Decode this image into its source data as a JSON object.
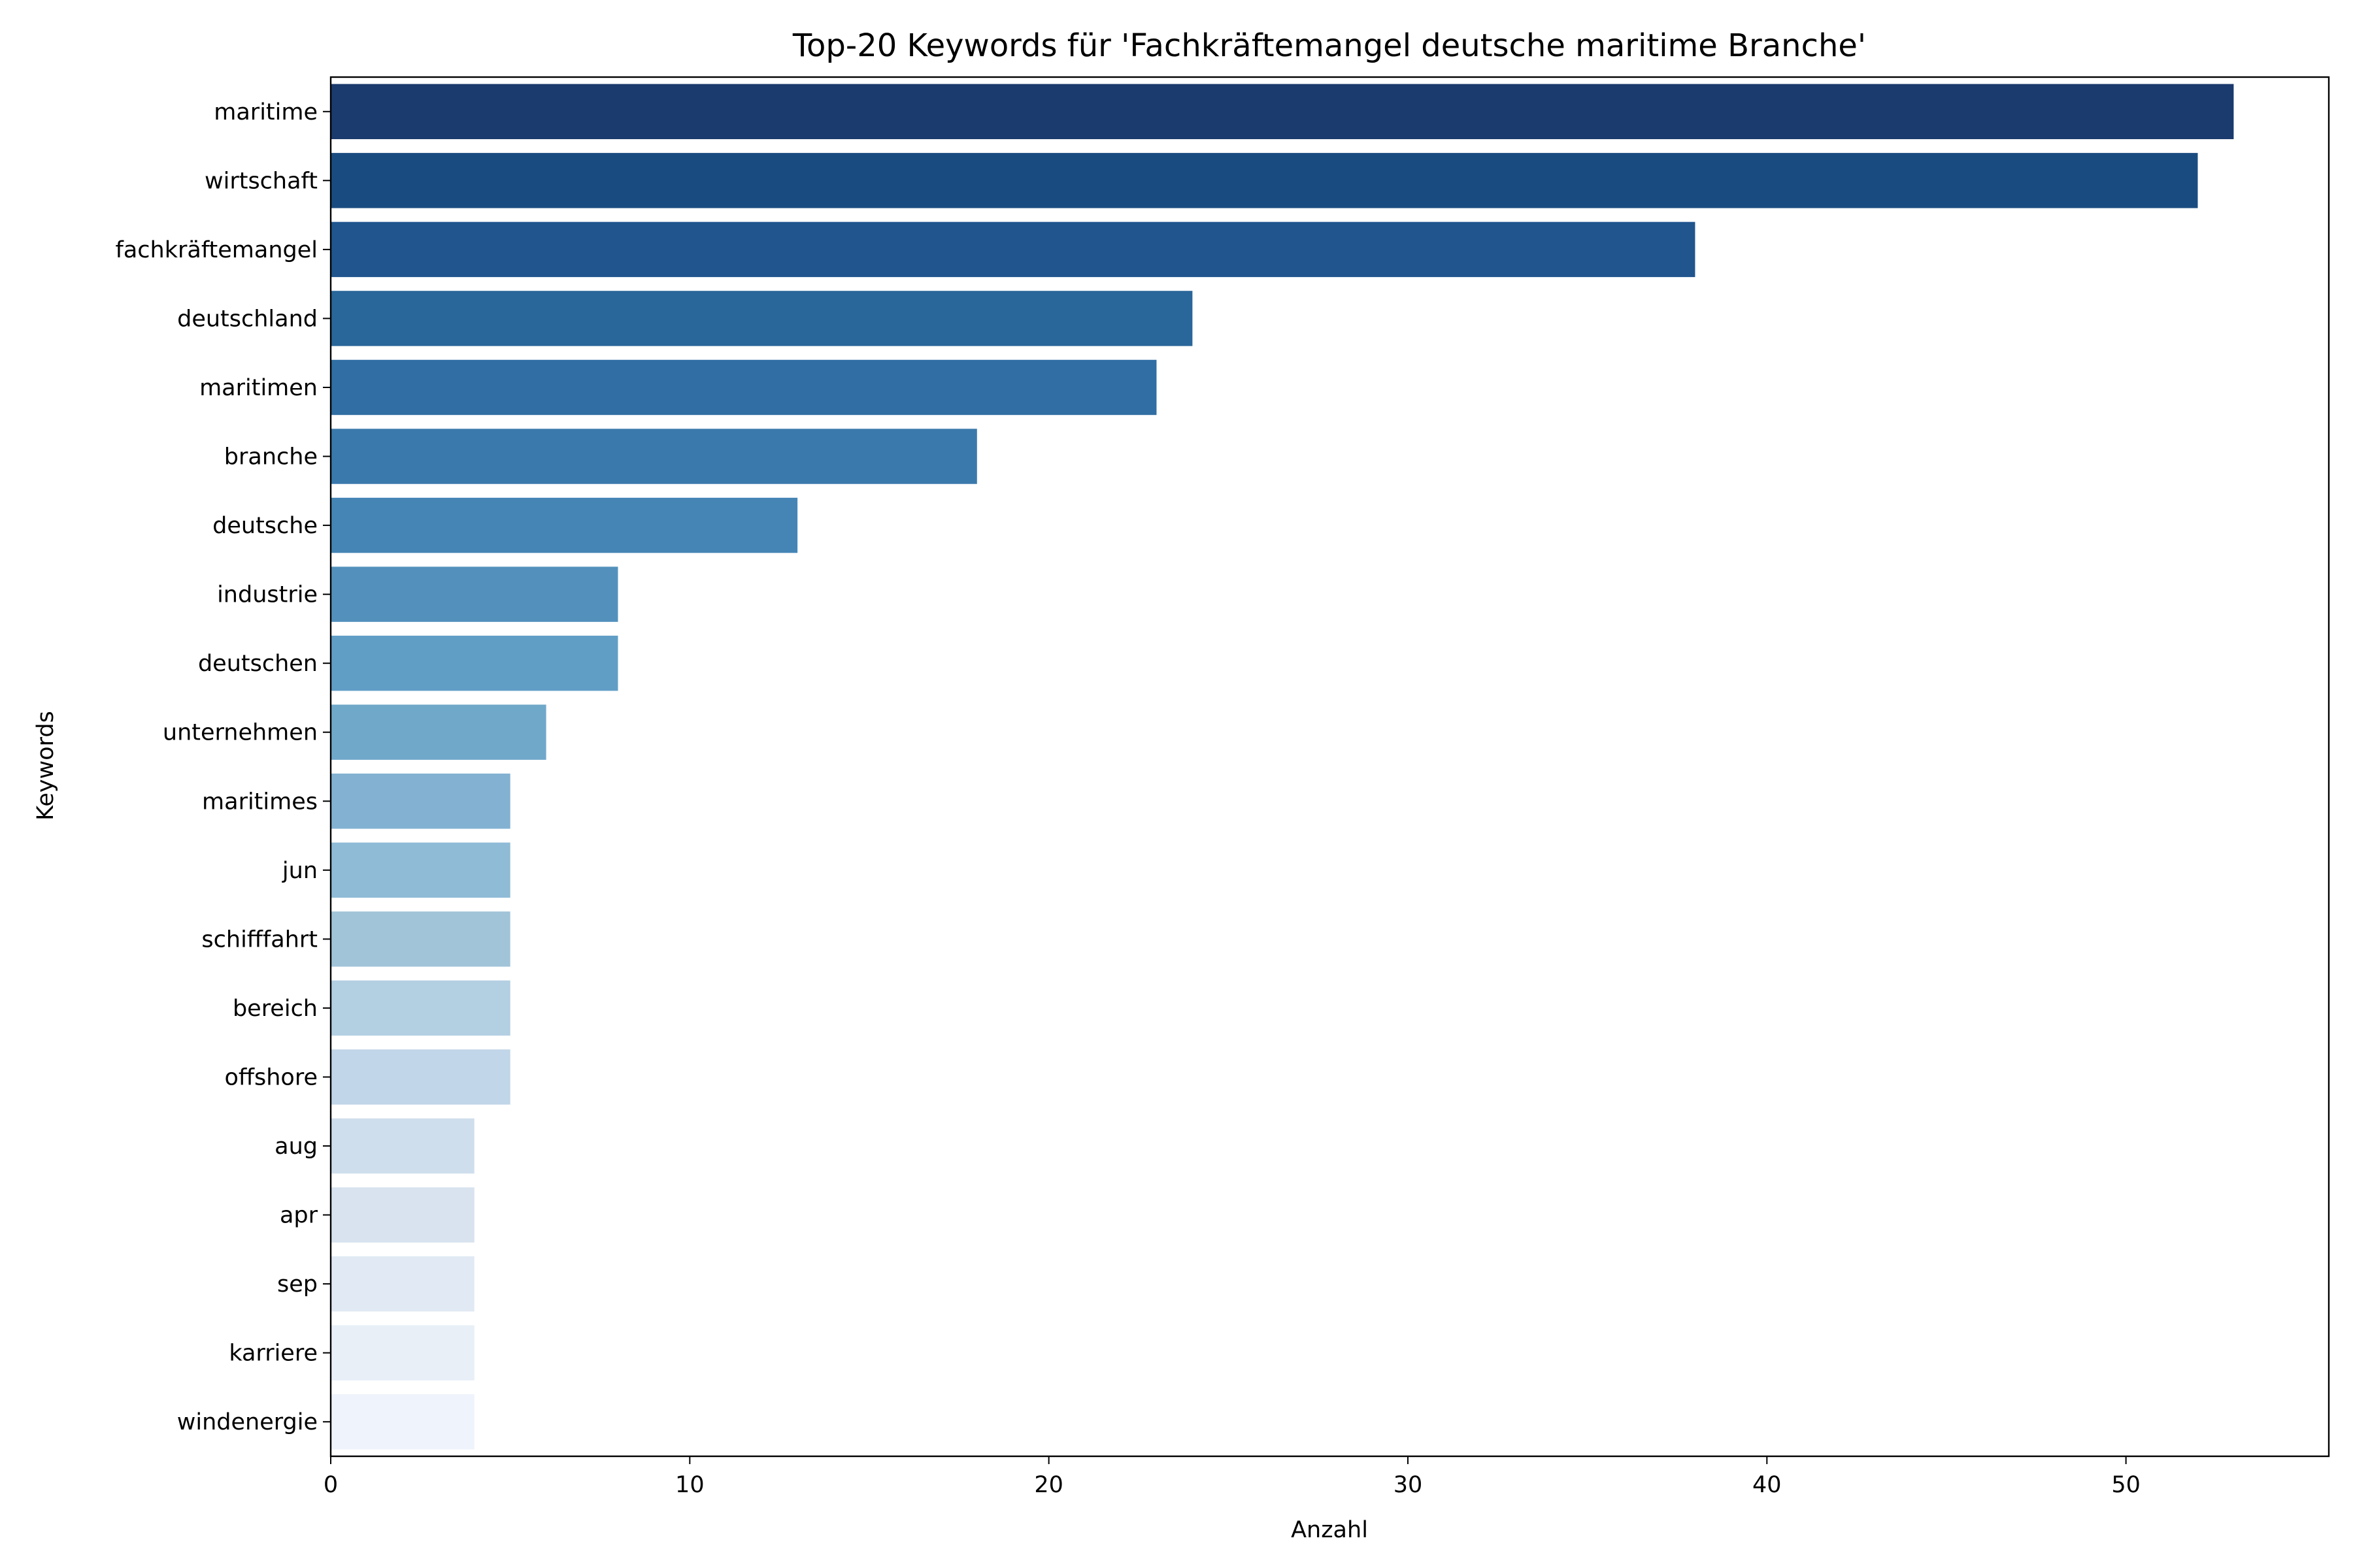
{
  "chart_data": {
    "type": "bar",
    "orientation": "horizontal",
    "title": "Top-20 Keywords für 'Fachkräftemangel deutsche maritime Branche'",
    "xlabel": "Anzahl",
    "ylabel": "Keywords",
    "xlim": [
      0,
      55.65
    ],
    "xticks": [
      0,
      10,
      20,
      30,
      40,
      50
    ],
    "xtick_labels": [
      "0",
      "10",
      "20",
      "30",
      "40",
      "50"
    ],
    "grid": false,
    "legend": "none",
    "categories": [
      "maritime",
      "wirtschaft",
      "fachkräftemangel",
      "deutschland",
      "maritimen",
      "branche",
      "deutsche",
      "industrie",
      "deutschen",
      "unternehmen",
      "maritimes",
      "jun",
      "schifffahrt",
      "bereich",
      "offshore",
      "aug",
      "apr",
      "sep",
      "karriere",
      "windenergie"
    ],
    "values": [
      53,
      52,
      38,
      24,
      23,
      18,
      13,
      8,
      8,
      6,
      5,
      5,
      5,
      5,
      5,
      4,
      4,
      4,
      4,
      4
    ],
    "colors": [
      "#1b3a6d",
      "#1a4b80",
      "#20558e",
      "#296699",
      "#306ea3",
      "#3a79ac",
      "#4585b6",
      "#5391bc",
      "#619ec6",
      "#70a8ca",
      "#82b1d2",
      "#8fbbd6",
      "#a1c4d9",
      "#b3cfe2",
      "#c1d6e8",
      "#cfdeec",
      "#d8e3ef",
      "#e1e9f4",
      "#e8eff7",
      "#eff3fb"
    ]
  }
}
